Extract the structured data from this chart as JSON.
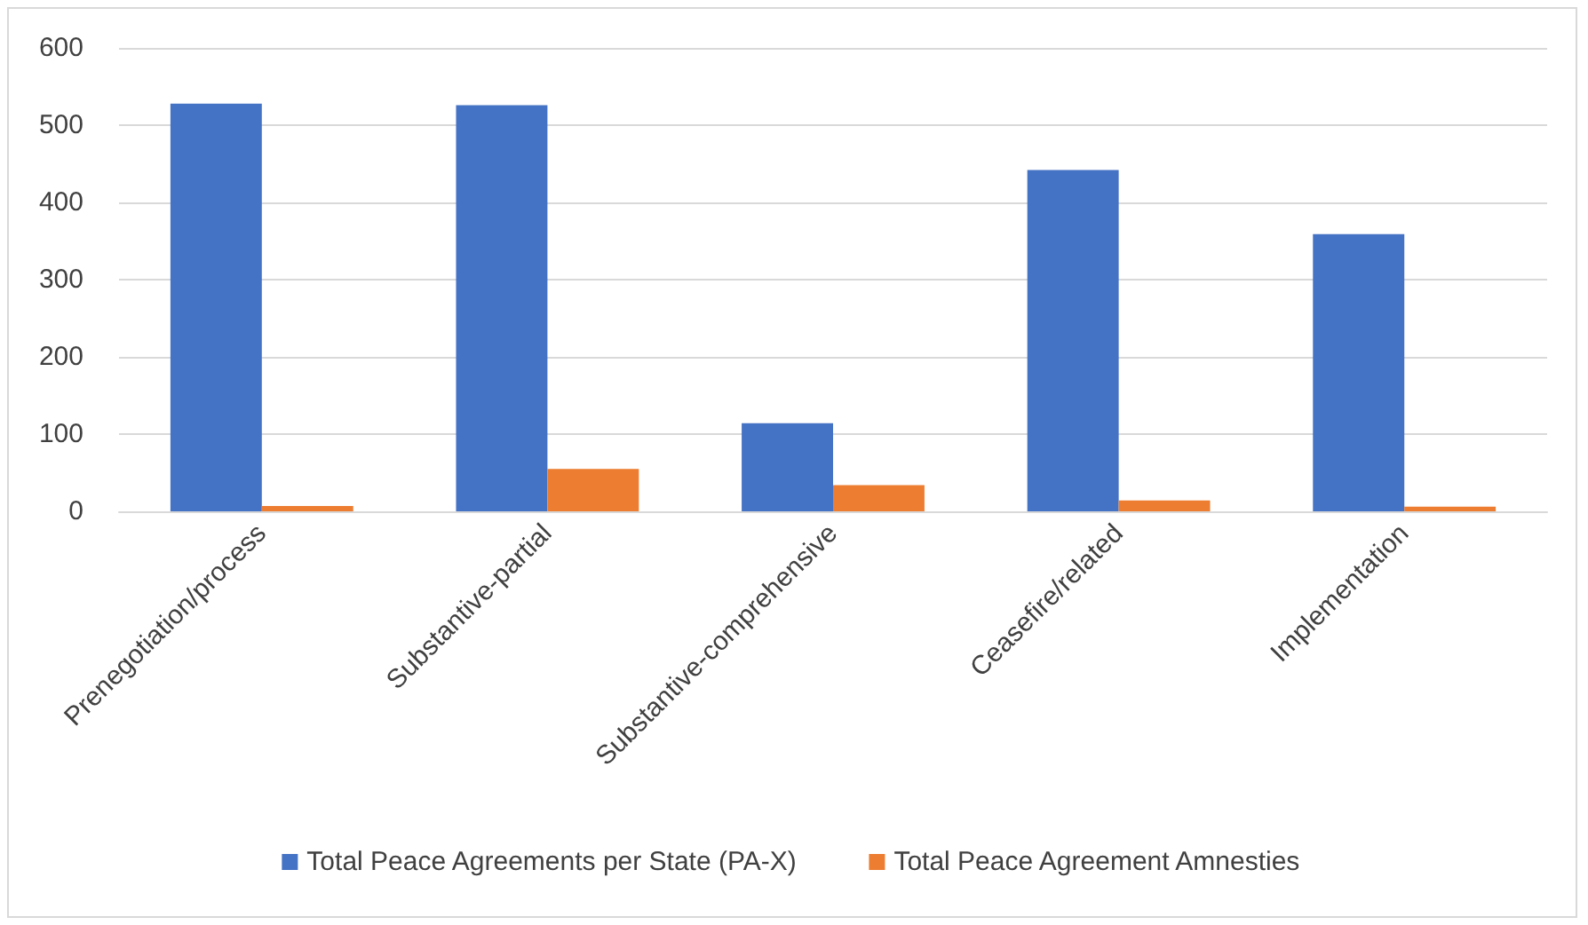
{
  "chart_data": {
    "type": "bar",
    "categories": [
      "Prenegotiation/process",
      "Substantive-partial",
      "Substantive-comprehensive",
      "Ceasefire/related",
      "Implementation"
    ],
    "series": [
      {
        "name": "Total Peace Agreements per State (PA-X)",
        "color": "#4472c4",
        "values": [
          528,
          526,
          114,
          442,
          359
        ]
      },
      {
        "name": "Total Peace Agreement Amnesties",
        "color": "#ed7d31",
        "values": [
          7,
          55,
          34,
          14,
          6
        ]
      }
    ],
    "ylim": [
      0,
      600
    ],
    "yticks": [
      0,
      100,
      200,
      300,
      400,
      500,
      600
    ],
    "grid": "y",
    "legend": "bottom"
  }
}
